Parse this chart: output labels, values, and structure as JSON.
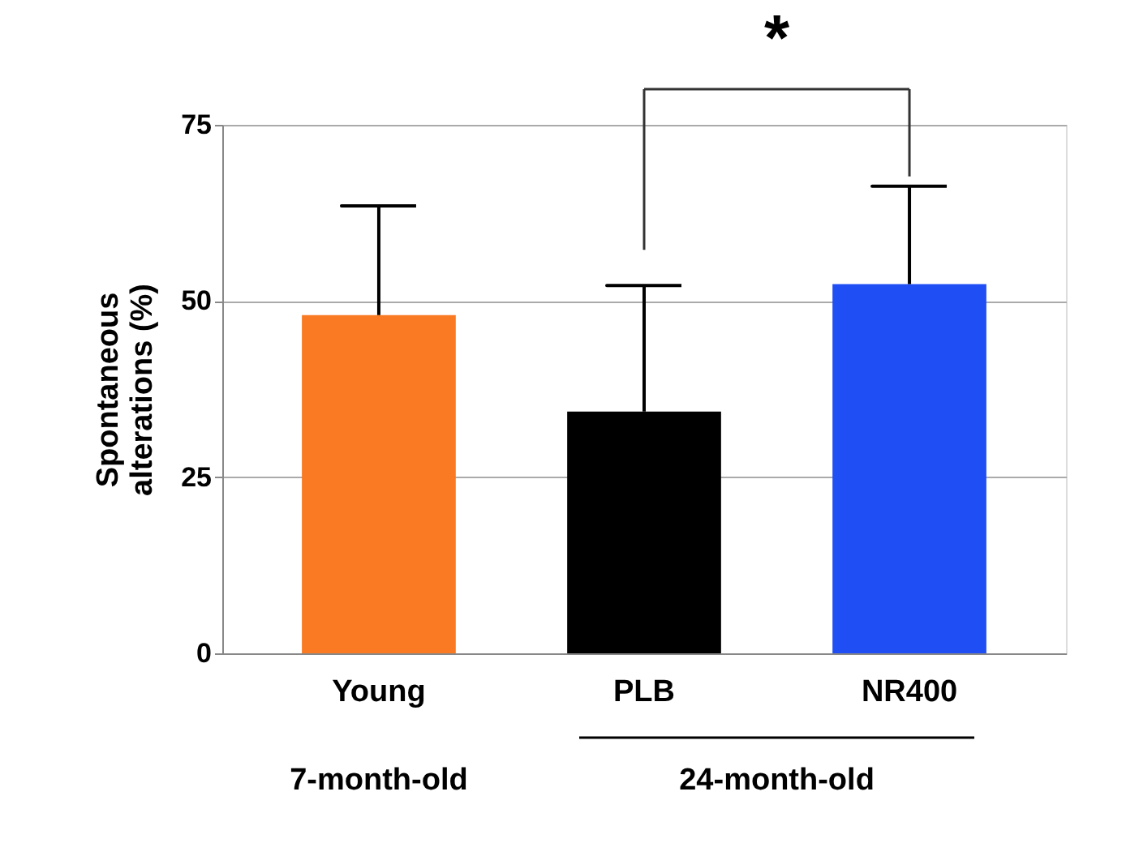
{
  "chart_data": {
    "type": "bar",
    "ylabel": "Spontaneous alterations (%)",
    "categories": [
      "Young",
      "PLB",
      "NR400"
    ],
    "values": [
      48,
      34.3,
      52.4
    ],
    "colors": [
      "#f97a22",
      "#000000",
      "#1f4ef5"
    ],
    "errors": [
      [
        48,
        63.5
      ],
      [
        34.3,
        52.2
      ],
      [
        52.4,
        66.3
      ]
    ],
    "ylim": [
      0,
      75
    ],
    "yticks": [
      0,
      25,
      50,
      75
    ],
    "grid": "y",
    "legend": false,
    "annotations": [
      "*",
      "7-month-old",
      "24-month-old"
    ]
  }
}
